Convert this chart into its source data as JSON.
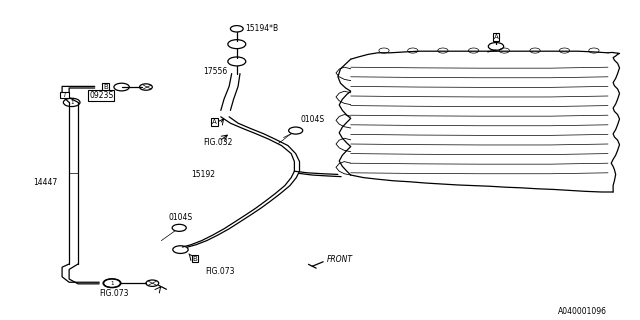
{
  "bg_color": "#ffffff",
  "line_color": "#000000",
  "lw": 0.9,
  "fig_width": 6.4,
  "fig_height": 3.2,
  "dpi": 100,
  "part_number": "A040001096",
  "labels": {
    "15194B": [
      0.403,
      0.915,
      "15194*B"
    ],
    "17556": [
      0.318,
      0.775,
      "17556"
    ],
    "0923S": [
      0.148,
      0.695,
      "0923S"
    ],
    "A_left": [
      0.33,
      0.61,
      "A"
    ],
    "A_right": [
      0.775,
      0.885,
      "A"
    ],
    "FIG032": [
      0.322,
      0.555,
      "FIG.032"
    ],
    "0104S_top": [
      0.47,
      0.625,
      "0104S"
    ],
    "15192": [
      0.298,
      0.455,
      "15192"
    ],
    "14447": [
      0.052,
      0.43,
      "14447"
    ],
    "0104S_bot": [
      0.263,
      0.32,
      "0104S"
    ],
    "FIG073_bl": [
      0.155,
      0.08,
      "FIG.073"
    ],
    "FIG073_bc": [
      0.32,
      0.15,
      "FIG.073"
    ],
    "FRONT": [
      0.508,
      0.185,
      "FRONT"
    ]
  }
}
